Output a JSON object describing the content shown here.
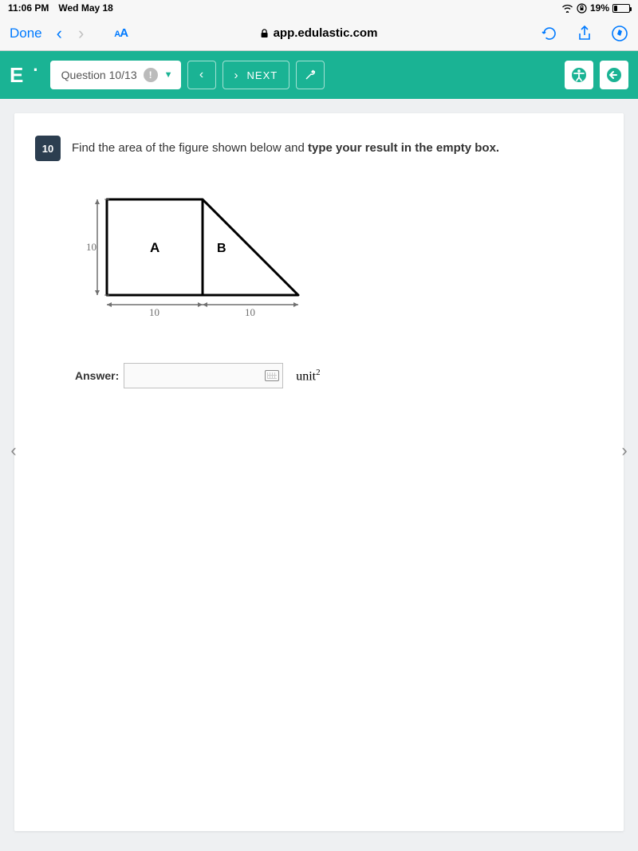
{
  "status": {
    "time": "11:06 PM",
    "date": "Wed May 18",
    "battery_pct": "19%"
  },
  "safari": {
    "done": "Done",
    "aa": "AA",
    "url": "app.edulastic.com"
  },
  "header": {
    "logo": "E",
    "question_indicator": "Question 10/13",
    "next": "NEXT"
  },
  "question": {
    "number": "10",
    "text_part1": "Find the area of the figure shown below and ",
    "text_bold": "type your result in the empty box."
  },
  "figure": {
    "height_label": "10",
    "base_left_label": "10",
    "base_right_label": "10",
    "region_a": "A",
    "region_b": "B",
    "square_side": 120,
    "stroke": "#000000",
    "dim_color": "#707070"
  },
  "answer": {
    "label": "Answer:",
    "unit_base": "unit",
    "unit_exp": "2"
  }
}
